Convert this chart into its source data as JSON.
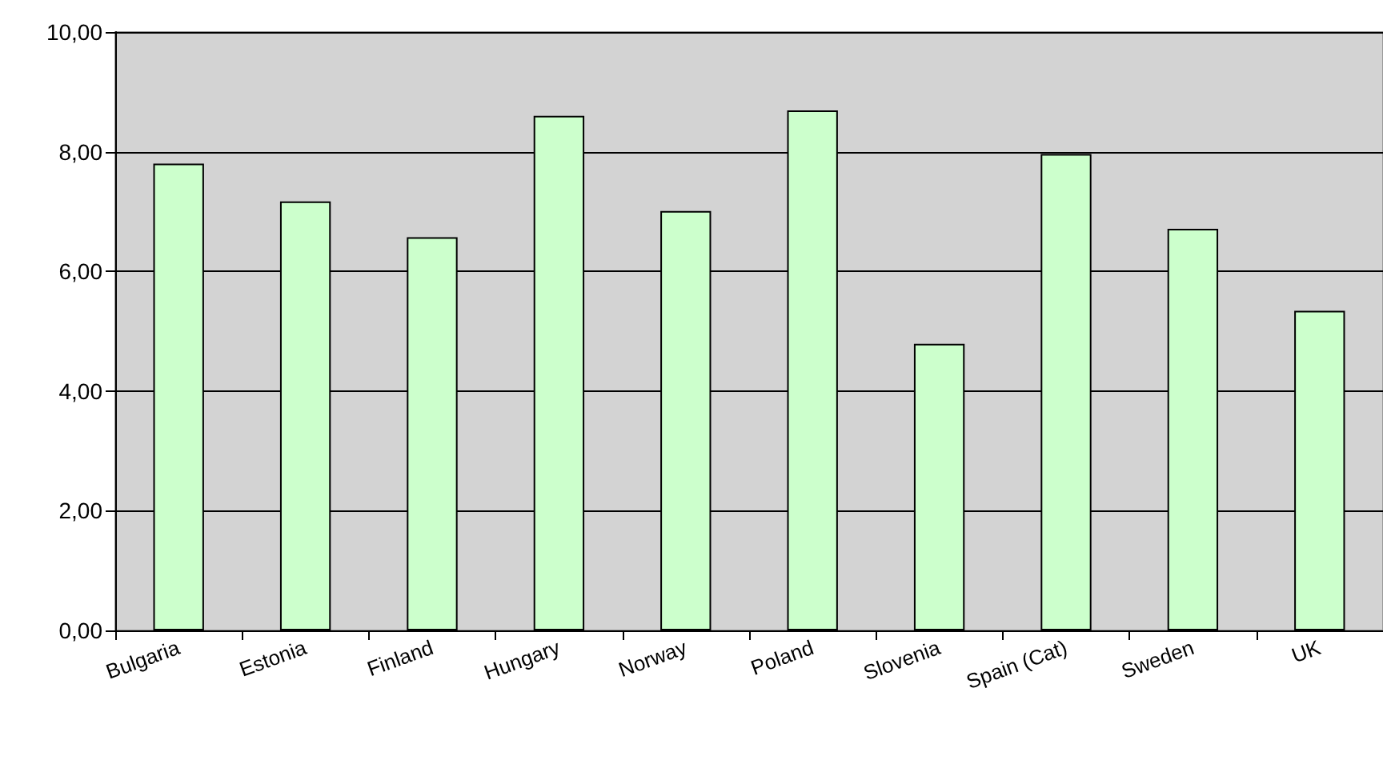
{
  "chart_data": {
    "type": "bar",
    "categories": [
      "Bulgaria",
      "Estonia",
      "Finland",
      "Hungary",
      "Norway",
      "Poland",
      "Slovenia",
      "Spain (Cat)",
      "Sweden",
      "UK"
    ],
    "values": [
      7.8,
      7.17,
      6.57,
      8.6,
      7.01,
      8.69,
      4.79,
      7.96,
      6.71,
      5.34
    ],
    "color": "#ccffcc",
    "ylim": [
      0,
      10
    ],
    "yticks": [
      {
        "value": 0,
        "label": "0,00"
      },
      {
        "value": 2,
        "label": "2,00"
      },
      {
        "value": 4,
        "label": "4,00"
      },
      {
        "value": 6,
        "label": "6,00"
      },
      {
        "value": 8,
        "label": "8,00"
      },
      {
        "value": 10,
        "label": "10,00"
      }
    ],
    "grid": "y"
  }
}
